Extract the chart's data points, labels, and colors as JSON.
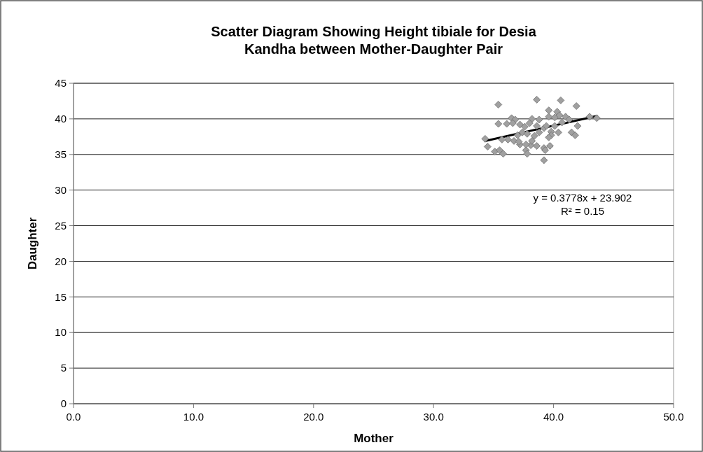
{
  "chart_data": {
    "type": "scatter",
    "title": "Scatter Diagram Showing Height tibiale for Desia\nKandha between Mother-Daughter Pair",
    "xlabel": "Mother",
    "ylabel": "Daughter",
    "xlim": [
      0,
      50
    ],
    "xticks": [
      {
        "value": 0,
        "label": "0.0"
      },
      {
        "value": 10,
        "label": "10.0"
      },
      {
        "value": 20,
        "label": "20.0"
      },
      {
        "value": 30,
        "label": "30.0"
      },
      {
        "value": 40,
        "label": "40.0"
      },
      {
        "value": 50,
        "label": "50.0"
      }
    ],
    "ylim": [
      0,
      45
    ],
    "yticks": [
      0,
      5,
      10,
      15,
      20,
      25,
      30,
      35,
      40,
      45
    ],
    "grid": "y",
    "annotations": [
      "y = 0.3778x + 23.902",
      "R² = 0.15"
    ],
    "series": [
      {
        "color": "#a0a0a0",
        "marker": "diamond",
        "x": [
          35.4,
          38.6,
          40.6,
          41.9,
          34.3,
          34.5,
          35.1,
          35.5,
          35.8,
          35.4,
          36.1,
          36.5,
          36.8,
          37.2,
          37.6,
          36.2,
          36.7,
          37.2,
          37.7,
          37.8,
          38.1,
          38.6,
          39.2,
          39.7,
          39.3,
          39.2,
          38.2,
          38.8,
          38.0,
          38.6,
          39.6,
          40.3,
          39.6,
          40.1,
          40.5,
          41.0,
          41.3,
          42.0,
          41.5,
          41.8,
          43.0,
          43.6,
          39.8,
          40.4,
          39.8,
          37.4,
          37.8,
          38.4,
          37.0,
          38.8,
          39.2,
          40.1,
          40.7,
          37.7,
          37.1,
          35.7,
          39.4,
          36.6,
          39.6,
          38.2
        ],
        "values": [
          42.0,
          42.7,
          42.6,
          41.8,
          37.2,
          36.1,
          35.4,
          35.6,
          35.1,
          39.3,
          39.3,
          40.1,
          39.9,
          39.2,
          38.9,
          37.1,
          36.9,
          36.4,
          35.6,
          35.1,
          36.3,
          36.2,
          35.9,
          36.2,
          35.6,
          34.2,
          40.0,
          39.9,
          39.4,
          39.0,
          41.2,
          41.0,
          40.3,
          40.2,
          40.5,
          40.3,
          39.9,
          39.0,
          38.1,
          37.7,
          40.3,
          40.1,
          38.2,
          38.1,
          37.7,
          38.1,
          37.9,
          37.6,
          37.7,
          38.1,
          38.7,
          39.0,
          39.5,
          36.4,
          36.8,
          37.1,
          39.0,
          39.4,
          37.4,
          36.9
        ]
      },
      {
        "type": "line",
        "color": "#000000",
        "x": [
          34.3,
          43.6
        ],
        "values": [
          36.9,
          40.4
        ]
      }
    ]
  }
}
